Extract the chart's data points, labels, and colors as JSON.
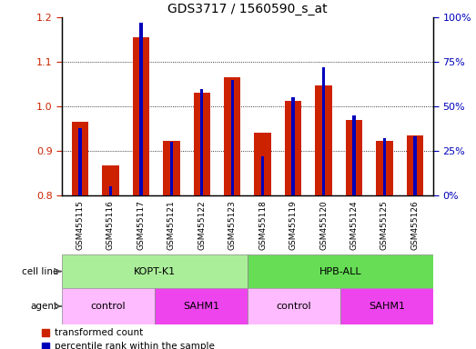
{
  "title": "GDS3717 / 1560590_s_at",
  "samples": [
    "GSM455115",
    "GSM455116",
    "GSM455117",
    "GSM455121",
    "GSM455122",
    "GSM455123",
    "GSM455118",
    "GSM455119",
    "GSM455120",
    "GSM455124",
    "GSM455125",
    "GSM455126"
  ],
  "transformed_count": [
    0.965,
    0.868,
    1.155,
    0.923,
    1.03,
    1.065,
    0.94,
    1.013,
    1.048,
    0.97,
    0.923,
    0.935
  ],
  "percentile_rank": [
    38,
    5,
    97,
    30,
    60,
    65,
    22,
    55,
    72,
    45,
    32,
    33
  ],
  "ylim_left": [
    0.8,
    1.2
  ],
  "ylim_right": [
    0,
    100
  ],
  "yticks_left": [
    0.8,
    0.9,
    1.0,
    1.1,
    1.2
  ],
  "yticks_right": [
    0,
    25,
    50,
    75,
    100
  ],
  "bar_color_red": "#cc2200",
  "bar_color_blue": "#0000bb",
  "cell_line_color": "#aaee99",
  "cell_line_color2": "#66dd55",
  "agent_control_color": "#ffbbff",
  "agent_sahm1_color": "#ee44ee",
  "cell_lines": [
    {
      "label": "KOPT-K1",
      "start": 0,
      "end": 6
    },
    {
      "label": "HPB-ALL",
      "start": 6,
      "end": 12
    }
  ],
  "agents": [
    {
      "label": "control",
      "start": 0,
      "end": 3
    },
    {
      "label": "SAHM1",
      "start": 3,
      "end": 6
    },
    {
      "label": "control",
      "start": 6,
      "end": 9
    },
    {
      "label": "SAHM1",
      "start": 9,
      "end": 12
    }
  ],
  "legend_labels": [
    "transformed count",
    "percentile rank within the sample"
  ],
  "tick_label_color_left": "#cc2200",
  "tick_label_color_right": "#0000bb",
  "xtick_bg": "#d8d8d8"
}
